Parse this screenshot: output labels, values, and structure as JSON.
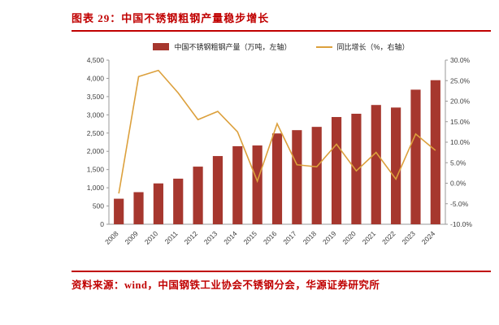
{
  "header": {
    "title": "图表 29：中国不锈钢粗钢产量稳步增长"
  },
  "chart_data": {
    "type": "bar",
    "title": "中国不锈钢粗钢产量稳步增长",
    "categories": [
      "2008",
      "2009",
      "2010",
      "2011",
      "2012",
      "2013",
      "2014",
      "2015",
      "2016",
      "2017",
      "2018",
      "2019",
      "2020",
      "2021",
      "2022",
      "2023",
      "2024"
    ],
    "series": [
      {
        "name": "中国不锈钢粗钢产量（万吨，左轴）",
        "type": "bar",
        "axis": "left",
        "values": [
          700,
          880,
          1120,
          1250,
          1580,
          1870,
          2140,
          2160,
          2490,
          2580,
          2670,
          2940,
          3030,
          3270,
          3200,
          3690,
          3950
        ]
      },
      {
        "name": "同比增长（%，右轴）",
        "type": "line",
        "axis": "right",
        "values": [
          -2.5,
          26.0,
          27.5,
          22.0,
          15.5,
          17.5,
          12.5,
          0.5,
          14.5,
          4.5,
          4.0,
          9.5,
          3.0,
          7.5,
          1.0,
          12.0,
          8.0
        ]
      }
    ],
    "left_axis": {
      "min": 0,
      "max": 4500,
      "step": 500,
      "tick_labels": [
        "0",
        "500",
        "1,000",
        "1,500",
        "2,000",
        "2,500",
        "3,000",
        "3,500",
        "4,000",
        "4,500"
      ]
    },
    "right_axis": {
      "min": -10,
      "max": 30,
      "step": 5,
      "tick_labels": [
        "-10.0%",
        "-5.0%",
        "0.0%",
        "5.0%",
        "10.0%",
        "15.0%",
        "20.0%",
        "25.0%",
        "30.0%"
      ]
    },
    "legend_position": "top",
    "grid": false
  },
  "footer": {
    "source": "资料来源：wind，中国钢铁工业协会不锈钢分会，华源证券研究所"
  },
  "theme": {
    "accent_red": "#c00000",
    "bar_color": "#a6372e",
    "line_color": "#dca03c",
    "axis_text": "#404040"
  }
}
